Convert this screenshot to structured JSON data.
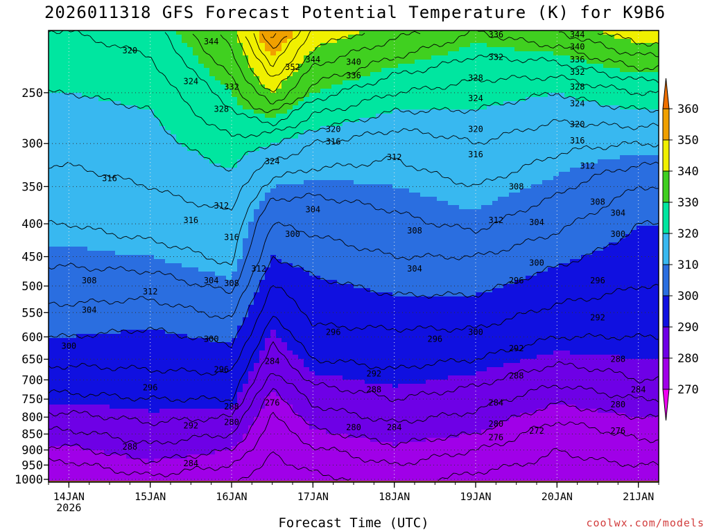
{
  "chart_data": {
    "type": "heatmap",
    "title": "2026011318 GFS Forecast Potential Temperature (K) for K9B6",
    "xlabel": "Forecast Time (UTC)",
    "ylabel": "",
    "credit": "coolwx.com/models",
    "x_ticks": [
      {
        "date": "2026-01-14",
        "label": "14JAN",
        "sublabel": "2026"
      },
      {
        "date": "2026-01-15",
        "label": "15JAN"
      },
      {
        "date": "2026-01-16",
        "label": "16JAN"
      },
      {
        "date": "2026-01-17",
        "label": "17JAN"
      },
      {
        "date": "2026-01-18",
        "label": "18JAN"
      },
      {
        "date": "2026-01-19",
        "label": "19JAN"
      },
      {
        "date": "2026-01-20",
        "label": "20JAN"
      },
      {
        "date": "2026-01-21",
        "label": "21JAN"
      }
    ],
    "xlim": [
      "2026-01-13T18:00",
      "2026-01-21T06:00"
    ],
    "y_scale": "log-pressure (hPa), decreasing upward",
    "y_ticks": [
      250,
      300,
      350,
      400,
      450,
      500,
      550,
      600,
      650,
      700,
      750,
      800,
      850,
      900,
      950,
      1000
    ],
    "ylim": [
      1010,
      200
    ],
    "grid": true,
    "colorbar": {
      "units": "K",
      "ticks": [
        270,
        280,
        290,
        300,
        310,
        320,
        330,
        340,
        350,
        360
      ],
      "colors": [
        "#f000f0",
        "#a000e8",
        "#6e00e6",
        "#1010e0",
        "#2a6ee0",
        "#38b8f0",
        "#00e6a0",
        "#40d020",
        "#f0f000",
        "#f0a000",
        "#f07000"
      ]
    },
    "theta_profiles": [
      {
        "date": "2026-01-14T00:00",
        "pressure_hpa": [
          1000,
          950,
          900,
          850,
          800,
          750,
          700,
          650,
          600,
          550,
          500,
          450,
          400,
          350,
          300,
          250,
          200
        ],
        "theta_k": [
          272,
          275,
          279,
          283,
          287,
          291,
          294,
          297,
          300,
          303,
          306,
          309,
          312,
          315,
          317,
          320,
          324
        ]
      },
      {
        "date": "2026-01-15T00:00",
        "pressure_hpa": [
          1000,
          950,
          900,
          850,
          800,
          750,
          700,
          650,
          600,
          550,
          500,
          450,
          400,
          350,
          300,
          250,
          200
        ],
        "theta_k": [
          275,
          279,
          283,
          286,
          289,
          292,
          295,
          297,
          299,
          302,
          306,
          310,
          314,
          316,
          318,
          321,
          326
        ]
      },
      {
        "date": "2026-01-16T00:00",
        "pressure_hpa": [
          1000,
          950,
          900,
          850,
          800,
          750,
          700,
          650,
          600,
          550,
          500,
          450,
          400,
          350,
          300,
          250,
          200
        ],
        "theta_k": [
          272,
          276,
          280,
          284,
          288,
          292,
          295,
          298,
          301,
          305,
          309,
          313,
          315,
          318,
          323,
          330,
          338
        ]
      },
      {
        "date": "2026-01-16T12:00",
        "pressure_hpa": [
          1000,
          950,
          900,
          850,
          800,
          750,
          700,
          650,
          600,
          550,
          500,
          450,
          400,
          350,
          300,
          250,
          200
        ],
        "theta_k": [
          270,
          271,
          272,
          273,
          275,
          278,
          282,
          286,
          289,
          292,
          296,
          300,
          304,
          310,
          320,
          340,
          358
        ]
      },
      {
        "date": "2026-01-17T00:00",
        "pressure_hpa": [
          1000,
          950,
          900,
          850,
          800,
          750,
          700,
          650,
          600,
          550,
          500,
          450,
          400,
          350,
          300,
          250,
          200
        ],
        "theta_k": [
          271,
          273,
          275,
          279,
          282,
          285,
          289,
          292,
          295,
          297,
          299,
          302,
          305,
          309,
          316,
          330,
          344
        ]
      },
      {
        "date": "2026-01-18T00:00",
        "pressure_hpa": [
          1000,
          950,
          900,
          850,
          800,
          750,
          700,
          650,
          600,
          550,
          500,
          450,
          400,
          350,
          300,
          250,
          200
        ],
        "theta_k": [
          273,
          276,
          279,
          282,
          285,
          288,
          291,
          293,
          295,
          298,
          301,
          304,
          307,
          310,
          313,
          324,
          338
        ]
      },
      {
        "date": "2026-01-19T00:00",
        "pressure_hpa": [
          1000,
          950,
          900,
          850,
          800,
          750,
          700,
          650,
          600,
          550,
          500,
          450,
          400,
          350,
          300,
          250,
          200
        ],
        "theta_k": [
          271,
          273,
          276,
          280,
          283,
          286,
          289,
          292,
          295,
          298,
          301,
          304,
          309,
          312,
          316,
          322,
          332
        ]
      },
      {
        "date": "2026-01-20T00:00",
        "pressure_hpa": [
          1000,
          950,
          900,
          850,
          800,
          750,
          700,
          650,
          600,
          550,
          500,
          450,
          400,
          350,
          300,
          250,
          200
        ],
        "theta_k": [
          270,
          271,
          272,
          273,
          277,
          281,
          285,
          289,
          292,
          295,
          298,
          301,
          305,
          309,
          313,
          320,
          336
        ]
      },
      {
        "date": "2026-01-21T00:00",
        "pressure_hpa": [
          1000,
          950,
          900,
          850,
          800,
          750,
          700,
          650,
          600,
          550,
          500,
          450,
          400,
          350,
          300,
          250,
          200
        ],
        "theta_k": [
          270,
          272,
          274,
          277,
          280,
          284,
          288,
          290,
          292,
          294,
          296,
          298,
          300,
          304,
          312,
          324,
          344
        ]
      }
    ],
    "contour_labels": [
      {
        "text": "320",
        "date": "2026-01-14T18:00",
        "p": 215
      },
      {
        "text": "316",
        "date": "2026-01-14T12:00",
        "p": 340
      },
      {
        "text": "308",
        "date": "2026-01-14T06:00",
        "p": 490
      },
      {
        "text": "312",
        "date": "2026-01-15T00:00",
        "p": 510
      },
      {
        "text": "304",
        "date": "2026-01-14T06:00",
        "p": 545
      },
      {
        "text": "300",
        "date": "2026-01-14T00:00",
        "p": 620
      },
      {
        "text": "296",
        "date": "2026-01-15T00:00",
        "p": 720
      },
      {
        "text": "292",
        "date": "2026-01-15T12:00",
        "p": 825
      },
      {
        "text": "288",
        "date": "2026-01-14T18:00",
        "p": 890
      },
      {
        "text": "284",
        "date": "2026-01-15T12:00",
        "p": 945
      },
      {
        "text": "324",
        "date": "2026-01-15T12:00",
        "p": 240
      },
      {
        "text": "332",
        "date": "2026-01-16T00:00",
        "p": 245
      },
      {
        "text": "328",
        "date": "2026-01-15T21:00",
        "p": 265
      },
      {
        "text": "344",
        "date": "2026-01-15T18:00",
        "p": 208
      },
      {
        "text": "316",
        "date": "2026-01-15T12:00",
        "p": 395
      },
      {
        "text": "312",
        "date": "2026-01-15T21:00",
        "p": 375
      },
      {
        "text": "316",
        "date": "2026-01-16T00:00",
        "p": 420
      },
      {
        "text": "304",
        "date": "2026-01-15T18:00",
        "p": 490
      },
      {
        "text": "308",
        "date": "2026-01-16T00:00",
        "p": 495
      },
      {
        "text": "312",
        "date": "2026-01-16T08:00",
        "p": 470
      },
      {
        "text": "300",
        "date": "2026-01-15T18:00",
        "p": 605
      },
      {
        "text": "296",
        "date": "2026-01-15T21:00",
        "p": 675
      },
      {
        "text": "288",
        "date": "2026-01-16T00:00",
        "p": 770
      },
      {
        "text": "280",
        "date": "2026-01-16T00:00",
        "p": 815
      },
      {
        "text": "324",
        "date": "2026-01-16T12:00",
        "p": 320
      },
      {
        "text": "352",
        "date": "2026-01-16T18:00",
        "p": 228
      },
      {
        "text": "344",
        "date": "2026-01-17T00:00",
        "p": 222
      },
      {
        "text": "340",
        "date": "2026-01-17T12:00",
        "p": 224
      },
      {
        "text": "336",
        "date": "2026-01-17T12:00",
        "p": 235
      },
      {
        "text": "300",
        "date": "2026-01-16T18:00",
        "p": 415
      },
      {
        "text": "284",
        "date": "2026-01-16T12:00",
        "p": 655
      },
      {
        "text": "276",
        "date": "2026-01-16T12:00",
        "p": 760
      },
      {
        "text": "320",
        "date": "2026-01-17T06:00",
        "p": 285
      },
      {
        "text": "316",
        "date": "2026-01-17T06:00",
        "p": 298
      },
      {
        "text": "312",
        "date": "2026-01-18T00:00",
        "p": 315
      },
      {
        "text": "304",
        "date": "2026-01-17T00:00",
        "p": 380
      },
      {
        "text": "308",
        "date": "2026-01-18T06:00",
        "p": 410
      },
      {
        "text": "296",
        "date": "2026-01-17T06:00",
        "p": 590
      },
      {
        "text": "292",
        "date": "2026-01-17T18:00",
        "p": 685
      },
      {
        "text": "288",
        "date": "2026-01-17T18:00",
        "p": 725
      },
      {
        "text": "280",
        "date": "2026-01-17T12:00",
        "p": 830
      },
      {
        "text": "304",
        "date": "2026-01-18T06:00",
        "p": 470
      },
      {
        "text": "284",
        "date": "2026-01-18T00:00",
        "p": 830
      },
      {
        "text": "296",
        "date": "2026-01-18T12:00",
        "p": 605
      },
      {
        "text": "336",
        "date": "2026-01-19T06:00",
        "p": 203
      },
      {
        "text": "332",
        "date": "2026-01-19T06:00",
        "p": 220
      },
      {
        "text": "328",
        "date": "2026-01-19T00:00",
        "p": 237
      },
      {
        "text": "324",
        "date": "2026-01-19T00:00",
        "p": 255
      },
      {
        "text": "320",
        "date": "2026-01-19T00:00",
        "p": 285
      },
      {
        "text": "316",
        "date": "2026-01-19T00:00",
        "p": 312
      },
      {
        "text": "312",
        "date": "2026-01-19T06:00",
        "p": 395
      },
      {
        "text": "308",
        "date": "2026-01-19T12:00",
        "p": 350
      },
      {
        "text": "304",
        "date": "2026-01-19T18:00",
        "p": 398
      },
      {
        "text": "300",
        "date": "2026-01-19T00:00",
        "p": 590
      },
      {
        "text": "292",
        "date": "2026-01-19T12:00",
        "p": 625
      },
      {
        "text": "288",
        "date": "2026-01-19T12:00",
        "p": 690
      },
      {
        "text": "284",
        "date": "2026-01-19T06:00",
        "p": 760
      },
      {
        "text": "280",
        "date": "2026-01-19T06:00",
        "p": 820
      },
      {
        "text": "276",
        "date": "2026-01-19T06:00",
        "p": 860
      },
      {
        "text": "296",
        "date": "2026-01-19T12:00",
        "p": 490
      },
      {
        "text": "300",
        "date": "2026-01-19T18:00",
        "p": 460
      },
      {
        "text": "272",
        "date": "2026-01-19T18:00",
        "p": 840
      },
      {
        "text": "344",
        "date": "2026-01-20T06:00",
        "p": 203
      },
      {
        "text": "340",
        "date": "2026-01-20T06:00",
        "p": 212
      },
      {
        "text": "336",
        "date": "2026-01-20T06:00",
        "p": 222
      },
      {
        "text": "332",
        "date": "2026-01-20T06:00",
        "p": 232
      },
      {
        "text": "328",
        "date": "2026-01-20T06:00",
        "p": 245
      },
      {
        "text": "324",
        "date": "2026-01-20T06:00",
        "p": 260
      },
      {
        "text": "320",
        "date": "2026-01-20T06:00",
        "p": 280
      },
      {
        "text": "316",
        "date": "2026-01-20T06:00",
        "p": 297
      },
      {
        "text": "312",
        "date": "2026-01-20T09:00",
        "p": 325
      },
      {
        "text": "308",
        "date": "2026-01-20T12:00",
        "p": 370
      },
      {
        "text": "304",
        "date": "2026-01-20T18:00",
        "p": 385
      },
      {
        "text": "300",
        "date": "2026-01-20T18:00",
        "p": 415
      },
      {
        "text": "296",
        "date": "2026-01-20T12:00",
        "p": 490
      },
      {
        "text": "292",
        "date": "2026-01-20T12:00",
        "p": 560
      },
      {
        "text": "288",
        "date": "2026-01-20T18:00",
        "p": 650
      },
      {
        "text": "284",
        "date": "2026-01-21T00:00",
        "p": 725
      },
      {
        "text": "280",
        "date": "2026-01-20T18:00",
        "p": 765
      },
      {
        "text": "276",
        "date": "2026-01-20T18:00",
        "p": 840
      }
    ]
  }
}
